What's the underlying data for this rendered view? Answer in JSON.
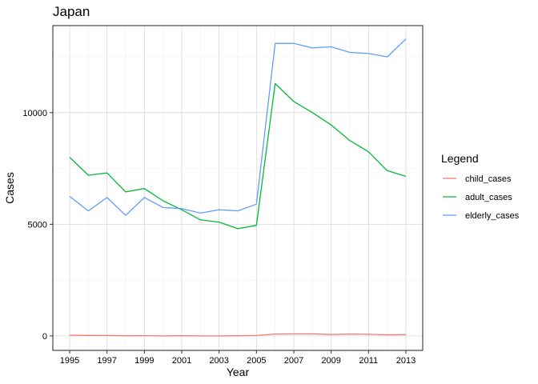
{
  "chart_data": {
    "type": "line",
    "title": "Japan",
    "xlabel": "Year",
    "ylabel": "Cases",
    "x": [
      1995,
      1996,
      1997,
      1998,
      1999,
      2000,
      2001,
      2002,
      2003,
      2004,
      2005,
      2006,
      2007,
      2008,
      2009,
      2010,
      2011,
      2012,
      2013
    ],
    "x_ticks": [
      1995,
      1997,
      1999,
      2001,
      2003,
      2005,
      2007,
      2009,
      2011,
      2013
    ],
    "x_tick_labels": [
      "1995",
      "1997",
      "1999",
      "2001",
      "2003",
      "2005",
      "2007",
      "2009",
      "2011",
      "2013"
    ],
    "y_ticks": [
      0,
      5000,
      10000
    ],
    "y_tick_labels": [
      "0",
      "5000",
      "10000"
    ],
    "xlim": [
      1994.1,
      2013.9
    ],
    "ylim": [
      -650,
      13900
    ],
    "grid": true,
    "legend": {
      "title": "Legend",
      "position": "right"
    },
    "series": [
      {
        "name": "child_cases",
        "color": "#F8766D",
        "values": [
          30,
          20,
          15,
          5,
          10,
          0,
          5,
          0,
          0,
          5,
          15,
          80,
          90,
          90,
          60,
          80,
          70,
          50,
          55
        ]
      },
      {
        "name": "adult_cases",
        "color": "#00BA38",
        "values": [
          8000,
          7200,
          7300,
          6450,
          6600,
          6050,
          5650,
          5200,
          5100,
          4800,
          4950,
          11300,
          10500,
          10000,
          9450,
          8750,
          8250,
          7400,
          7150
        ]
      },
      {
        "name": "elderly_cases",
        "color": "#619CFF",
        "values": [
          6250,
          5600,
          6200,
          5400,
          6200,
          5750,
          5700,
          5500,
          5650,
          5600,
          5900,
          13100,
          13100,
          12900,
          12950,
          12700,
          12650,
          12500,
          13300
        ]
      }
    ]
  }
}
